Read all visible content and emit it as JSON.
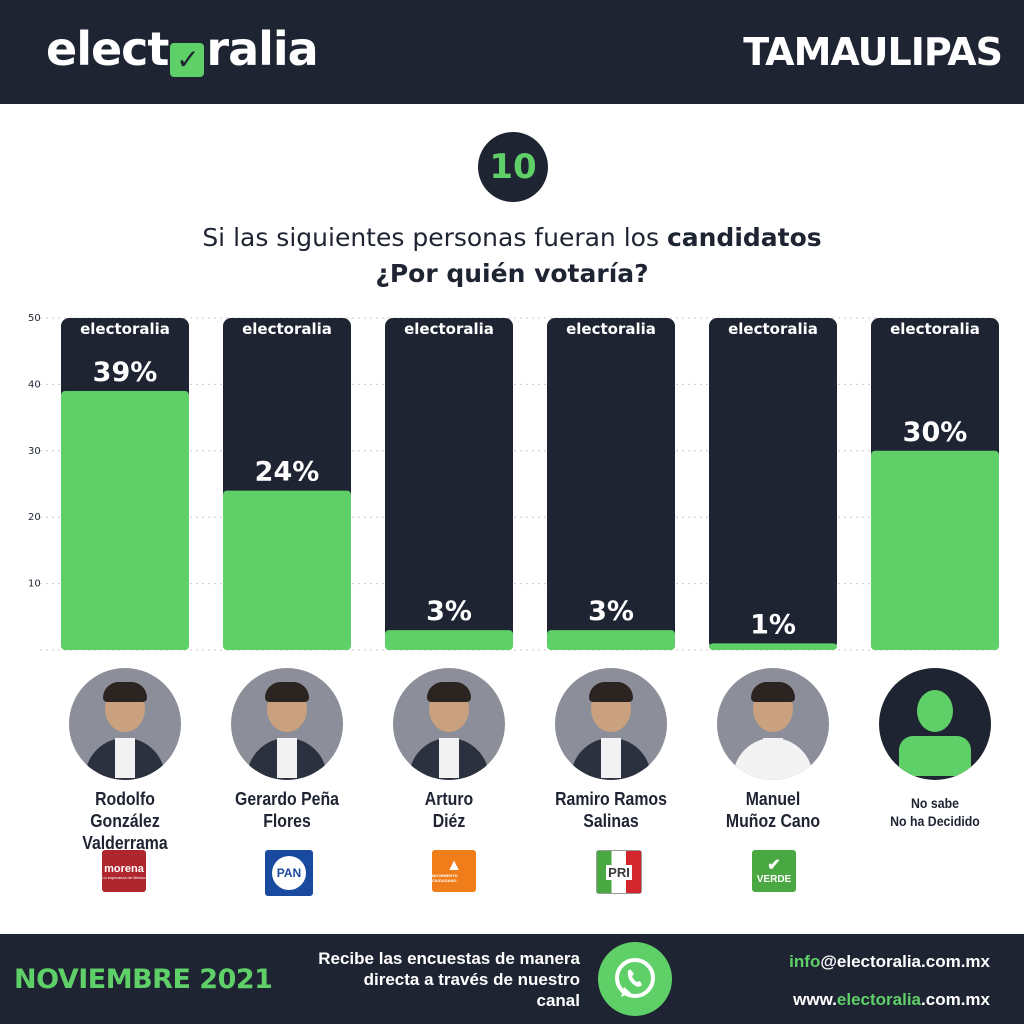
{
  "header": {
    "brand_a": "elect",
    "brand_v": "✓",
    "brand_b": "ralia",
    "region": "TAMAULIPAS"
  },
  "question_number": "10",
  "question": {
    "line1_plain": "Si las siguientes personas fueran los ",
    "line1_bold": "candidatos",
    "line2": "¿Por quién votaría?"
  },
  "bar_brand": "electoralia",
  "chart_data": {
    "type": "bar",
    "categories": [
      "Rodolfo González Valderrama",
      "Gerardo Peña Flores",
      "Arturo Diéz",
      "Ramiro Ramos Salinas",
      "Manuel Muñoz Cano",
      "No sabe No ha Decidido"
    ],
    "values": [
      39,
      24,
      3,
      3,
      1,
      30
    ],
    "labels": [
      "39%",
      "24%",
      "3%",
      "3%",
      "1%",
      "30%"
    ],
    "yticks": [
      10,
      20,
      30,
      40,
      50
    ],
    "ylim": [
      0,
      50
    ],
    "grid": true,
    "colors": {
      "bar_bg": "#1f2433",
      "bar_fill": "#5fd068"
    }
  },
  "candidates": [
    {
      "name": "Rodolfo González\nValderrama",
      "party": "morena",
      "party_sub": "La esperanza de México"
    },
    {
      "name": "Gerardo Peña\nFlores",
      "party": "PAN"
    },
    {
      "name": "Arturo\nDiéz",
      "party": "MOVIMIENTO CIUDADANO"
    },
    {
      "name": "Ramiro Ramos\nSalinas",
      "party": "PRI"
    },
    {
      "name": "Manuel\nMuñoz Cano",
      "party": "VERDE"
    },
    {
      "name": "No sabe\nNo ha Decidido"
    }
  ],
  "footer": {
    "month": "NOVIEMBRE 2021",
    "receive": "Recibe las encuestas de manera directa a través de nuestro canal",
    "email_user": "info",
    "email_domain": "@electoralia",
    "email_tld": ".com.mx",
    "web_prefix": "www.",
    "web_domain": "electoralia",
    "web_tld": ".com.mx"
  },
  "colors": {
    "dark": "#1f2433",
    "green": "#5fd068",
    "morena": "#b0262f",
    "pan": "#1a4aa0",
    "mc": "#ef7d1a",
    "pri": "#3a3a3a",
    "verde": "#49a842"
  }
}
